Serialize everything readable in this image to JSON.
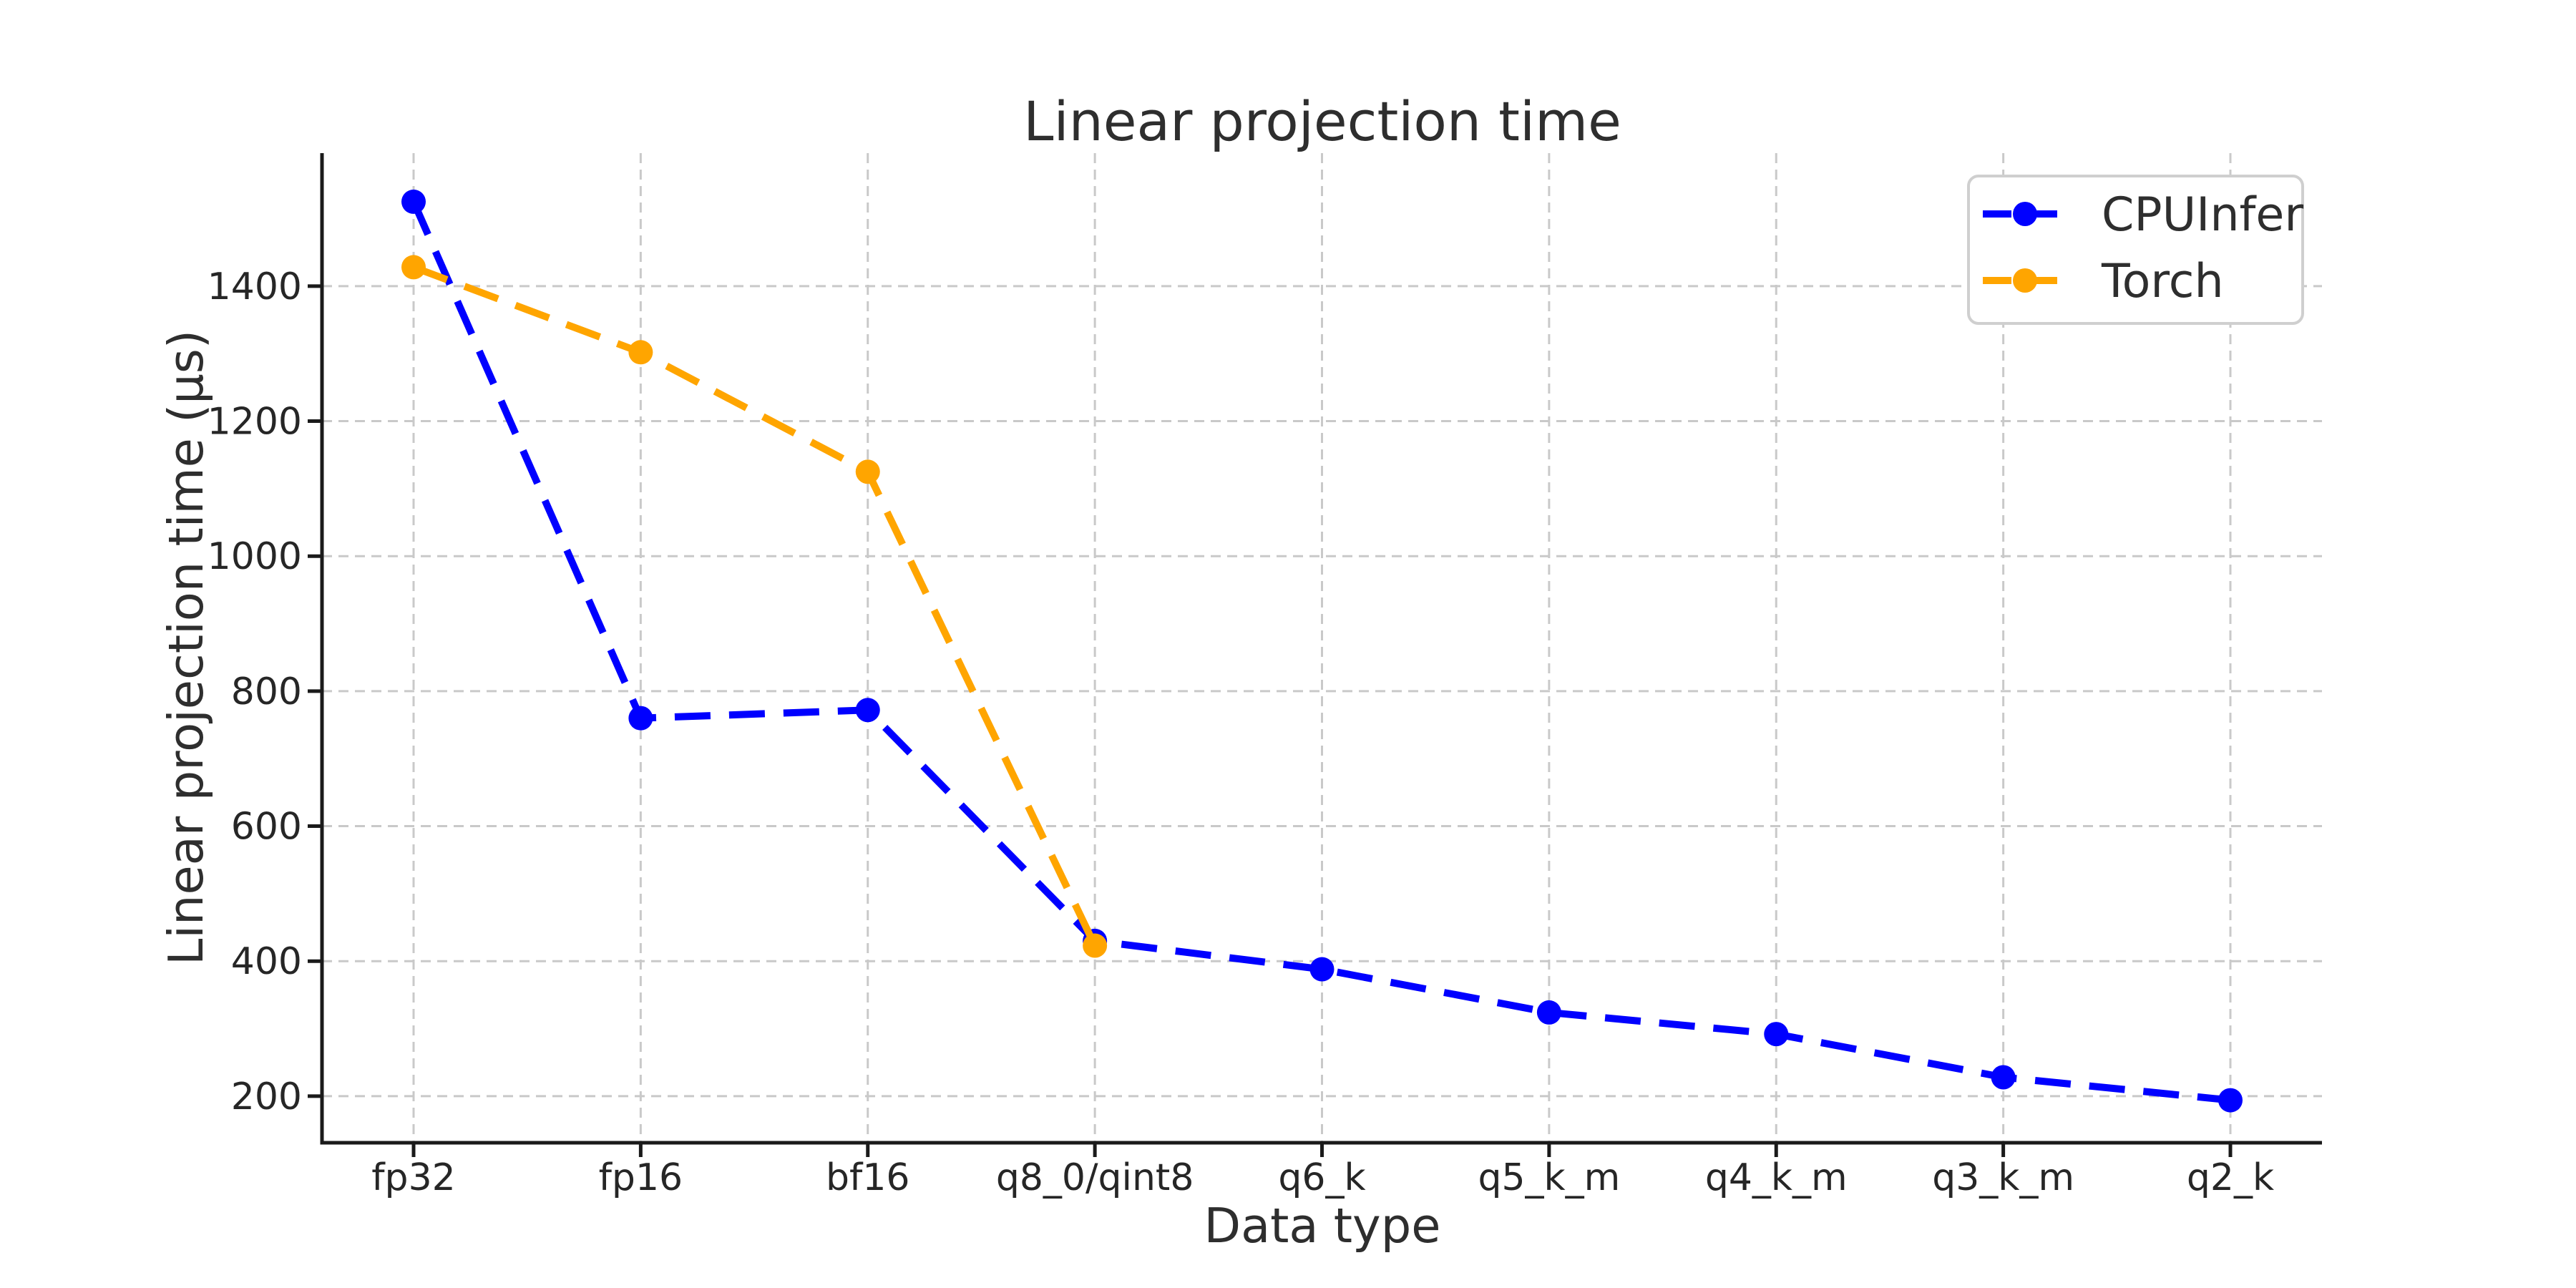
{
  "chart_data": {
    "type": "line",
    "title": "Linear projection time",
    "xlabel": "Data type",
    "ylabel": "Linear projection time (µs)",
    "categories": [
      "fp32",
      "fp16",
      "bf16",
      "q8_0/qint8",
      "q6_k",
      "q5_k_m",
      "q4_k_m",
      "q3_k_m",
      "q2_k"
    ],
    "series": [
      {
        "name": "CPUInfer",
        "color": "#0000ff",
        "values": [
          1525,
          760,
          772,
          430,
          388,
          324,
          292,
          228,
          194
        ]
      },
      {
        "name": "Torch",
        "color": "#ffa500",
        "values": [
          1428,
          1302,
          1125,
          423
        ]
      }
    ],
    "yticks": [
      200,
      400,
      600,
      800,
      1000,
      1200,
      1400
    ],
    "ylim": [
      131,
      1597
    ],
    "grid": true,
    "grid_style": "dashed",
    "line_style": "dashed",
    "marker": "circle",
    "legend_position": "upper right",
    "colors": {
      "grid": "#c9c9c9",
      "spine": "#1a1a1a",
      "text": "#2e2e2e",
      "background": "#ffffff"
    }
  }
}
